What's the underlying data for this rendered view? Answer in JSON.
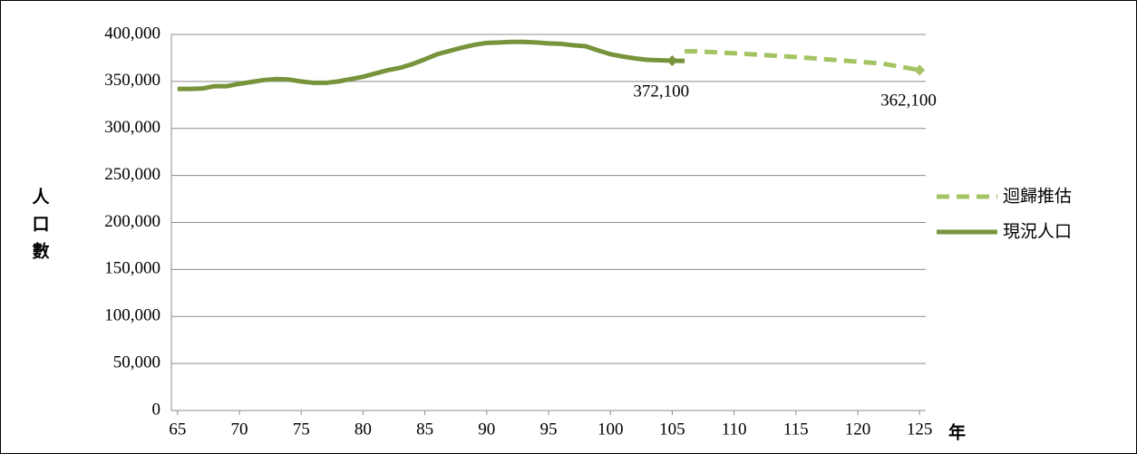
{
  "chart_data": {
    "type": "line",
    "y_label": "人口數",
    "x_label": "年",
    "xlim": [
      64.5,
      125.5
    ],
    "xticks": [
      65,
      70,
      75,
      80,
      85,
      90,
      95,
      100,
      105,
      110,
      115,
      120,
      125
    ],
    "ylim": [
      0,
      400000
    ],
    "yticks": [
      0,
      {
        "value": 50000,
        "label": "50,000"
      },
      {
        "value": 100000,
        "label": "100,000"
      },
      {
        "value": 150000,
        "label": "150,000"
      },
      {
        "value": 200000,
        "label": "200,000"
      },
      {
        "value": 250000,
        "label": "250,000"
      },
      {
        "value": 300000,
        "label": "300,000"
      },
      {
        "value": 350000,
        "label": "350,000"
      },
      {
        "value": 400000,
        "label": "400,000"
      }
    ],
    "grid": true,
    "legend": "right",
    "series": [
      {
        "name": "迴歸推估",
        "color": "#a4c463",
        "dashed": true,
        "x": [
          106,
          107,
          110,
          115,
          120,
          122,
          125
        ],
        "values": [
          382000,
          382000,
          380000,
          376000,
          371000,
          369000,
          362100
        ],
        "value_labels": [
          null,
          null,
          null,
          null,
          null,
          null,
          "362,100"
        ]
      },
      {
        "name": "現況人口",
        "color": "#77933c",
        "dashed": false,
        "x": [
          65,
          66,
          67,
          68,
          69,
          70,
          71,
          72,
          73,
          74,
          75,
          76,
          77,
          78,
          79,
          80,
          81,
          82,
          83,
          84,
          85,
          86,
          87,
          88,
          89,
          90,
          91,
          92,
          93,
          94,
          95,
          96,
          97,
          98,
          99,
          100,
          101,
          102,
          103,
          104,
          105,
          106
        ],
        "values": [
          342000,
          342000,
          342500,
          345000,
          345000,
          347500,
          349500,
          351500,
          352500,
          352000,
          350000,
          348500,
          348500,
          350000,
          352500,
          355000,
          358500,
          362000,
          364500,
          368500,
          373500,
          379000,
          382500,
          386000,
          389000,
          391000,
          391500,
          392000,
          392000,
          391500,
          390500,
          390000,
          388500,
          387500,
          383000,
          379000,
          376500,
          374500,
          373000,
          372500,
          372100,
          371800
        ],
        "value_labels": [
          null,
          null,
          null,
          null,
          null,
          null,
          null,
          null,
          null,
          null,
          null,
          null,
          null,
          null,
          null,
          null,
          null,
          null,
          null,
          null,
          null,
          null,
          null,
          null,
          null,
          null,
          null,
          null,
          null,
          null,
          null,
          null,
          null,
          null,
          null,
          null,
          null,
          null,
          null,
          null,
          "372,100",
          null
        ]
      }
    ]
  }
}
